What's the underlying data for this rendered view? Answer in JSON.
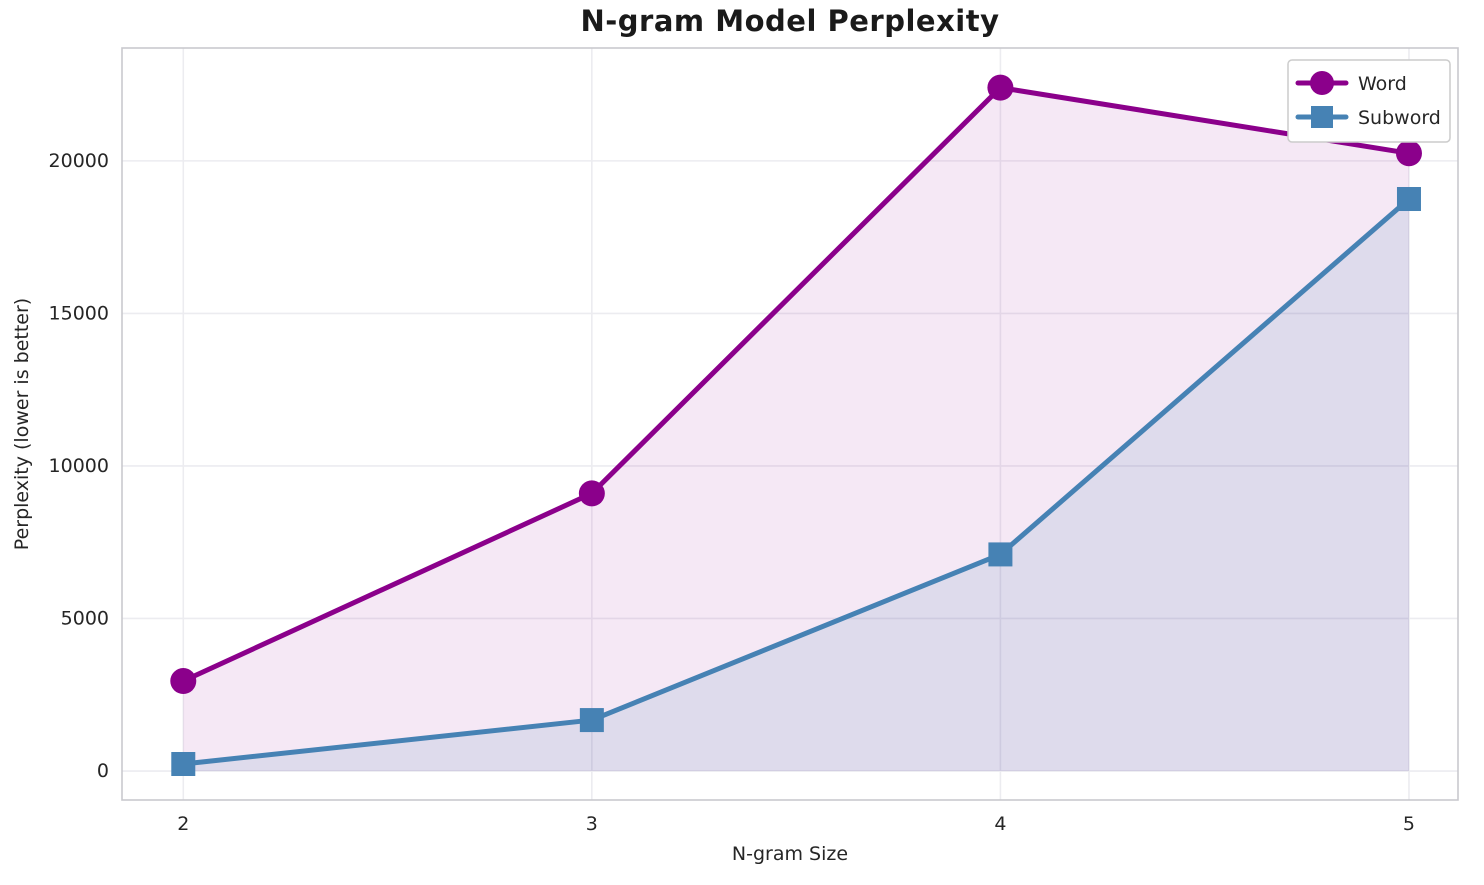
{
  "chart_data": {
    "type": "line",
    "title": "N-gram Model Perplexity",
    "xlabel": "N-gram Size",
    "ylabel": "Perplexity (lower is better)",
    "x": [
      2,
      3,
      4,
      5
    ],
    "xticks": [
      2,
      3,
      4,
      5
    ],
    "yticks": [
      0,
      5000,
      10000,
      15000,
      20000
    ],
    "xlim": [
      1.85,
      5.12
    ],
    "ylim": [
      -950,
      23700
    ],
    "grid": true,
    "legend_position": "upper right",
    "series": [
      {
        "name": "Word",
        "values": [
          2950,
          9100,
          22400,
          20250
        ],
        "color": "#8B008B",
        "marker": "circle",
        "fill_opacity": 0.09
      },
      {
        "name": "Subword",
        "values": [
          230,
          1670,
          7100,
          18750
        ],
        "color": "#4682B4",
        "marker": "square",
        "fill_opacity": 0.13
      }
    ]
  }
}
